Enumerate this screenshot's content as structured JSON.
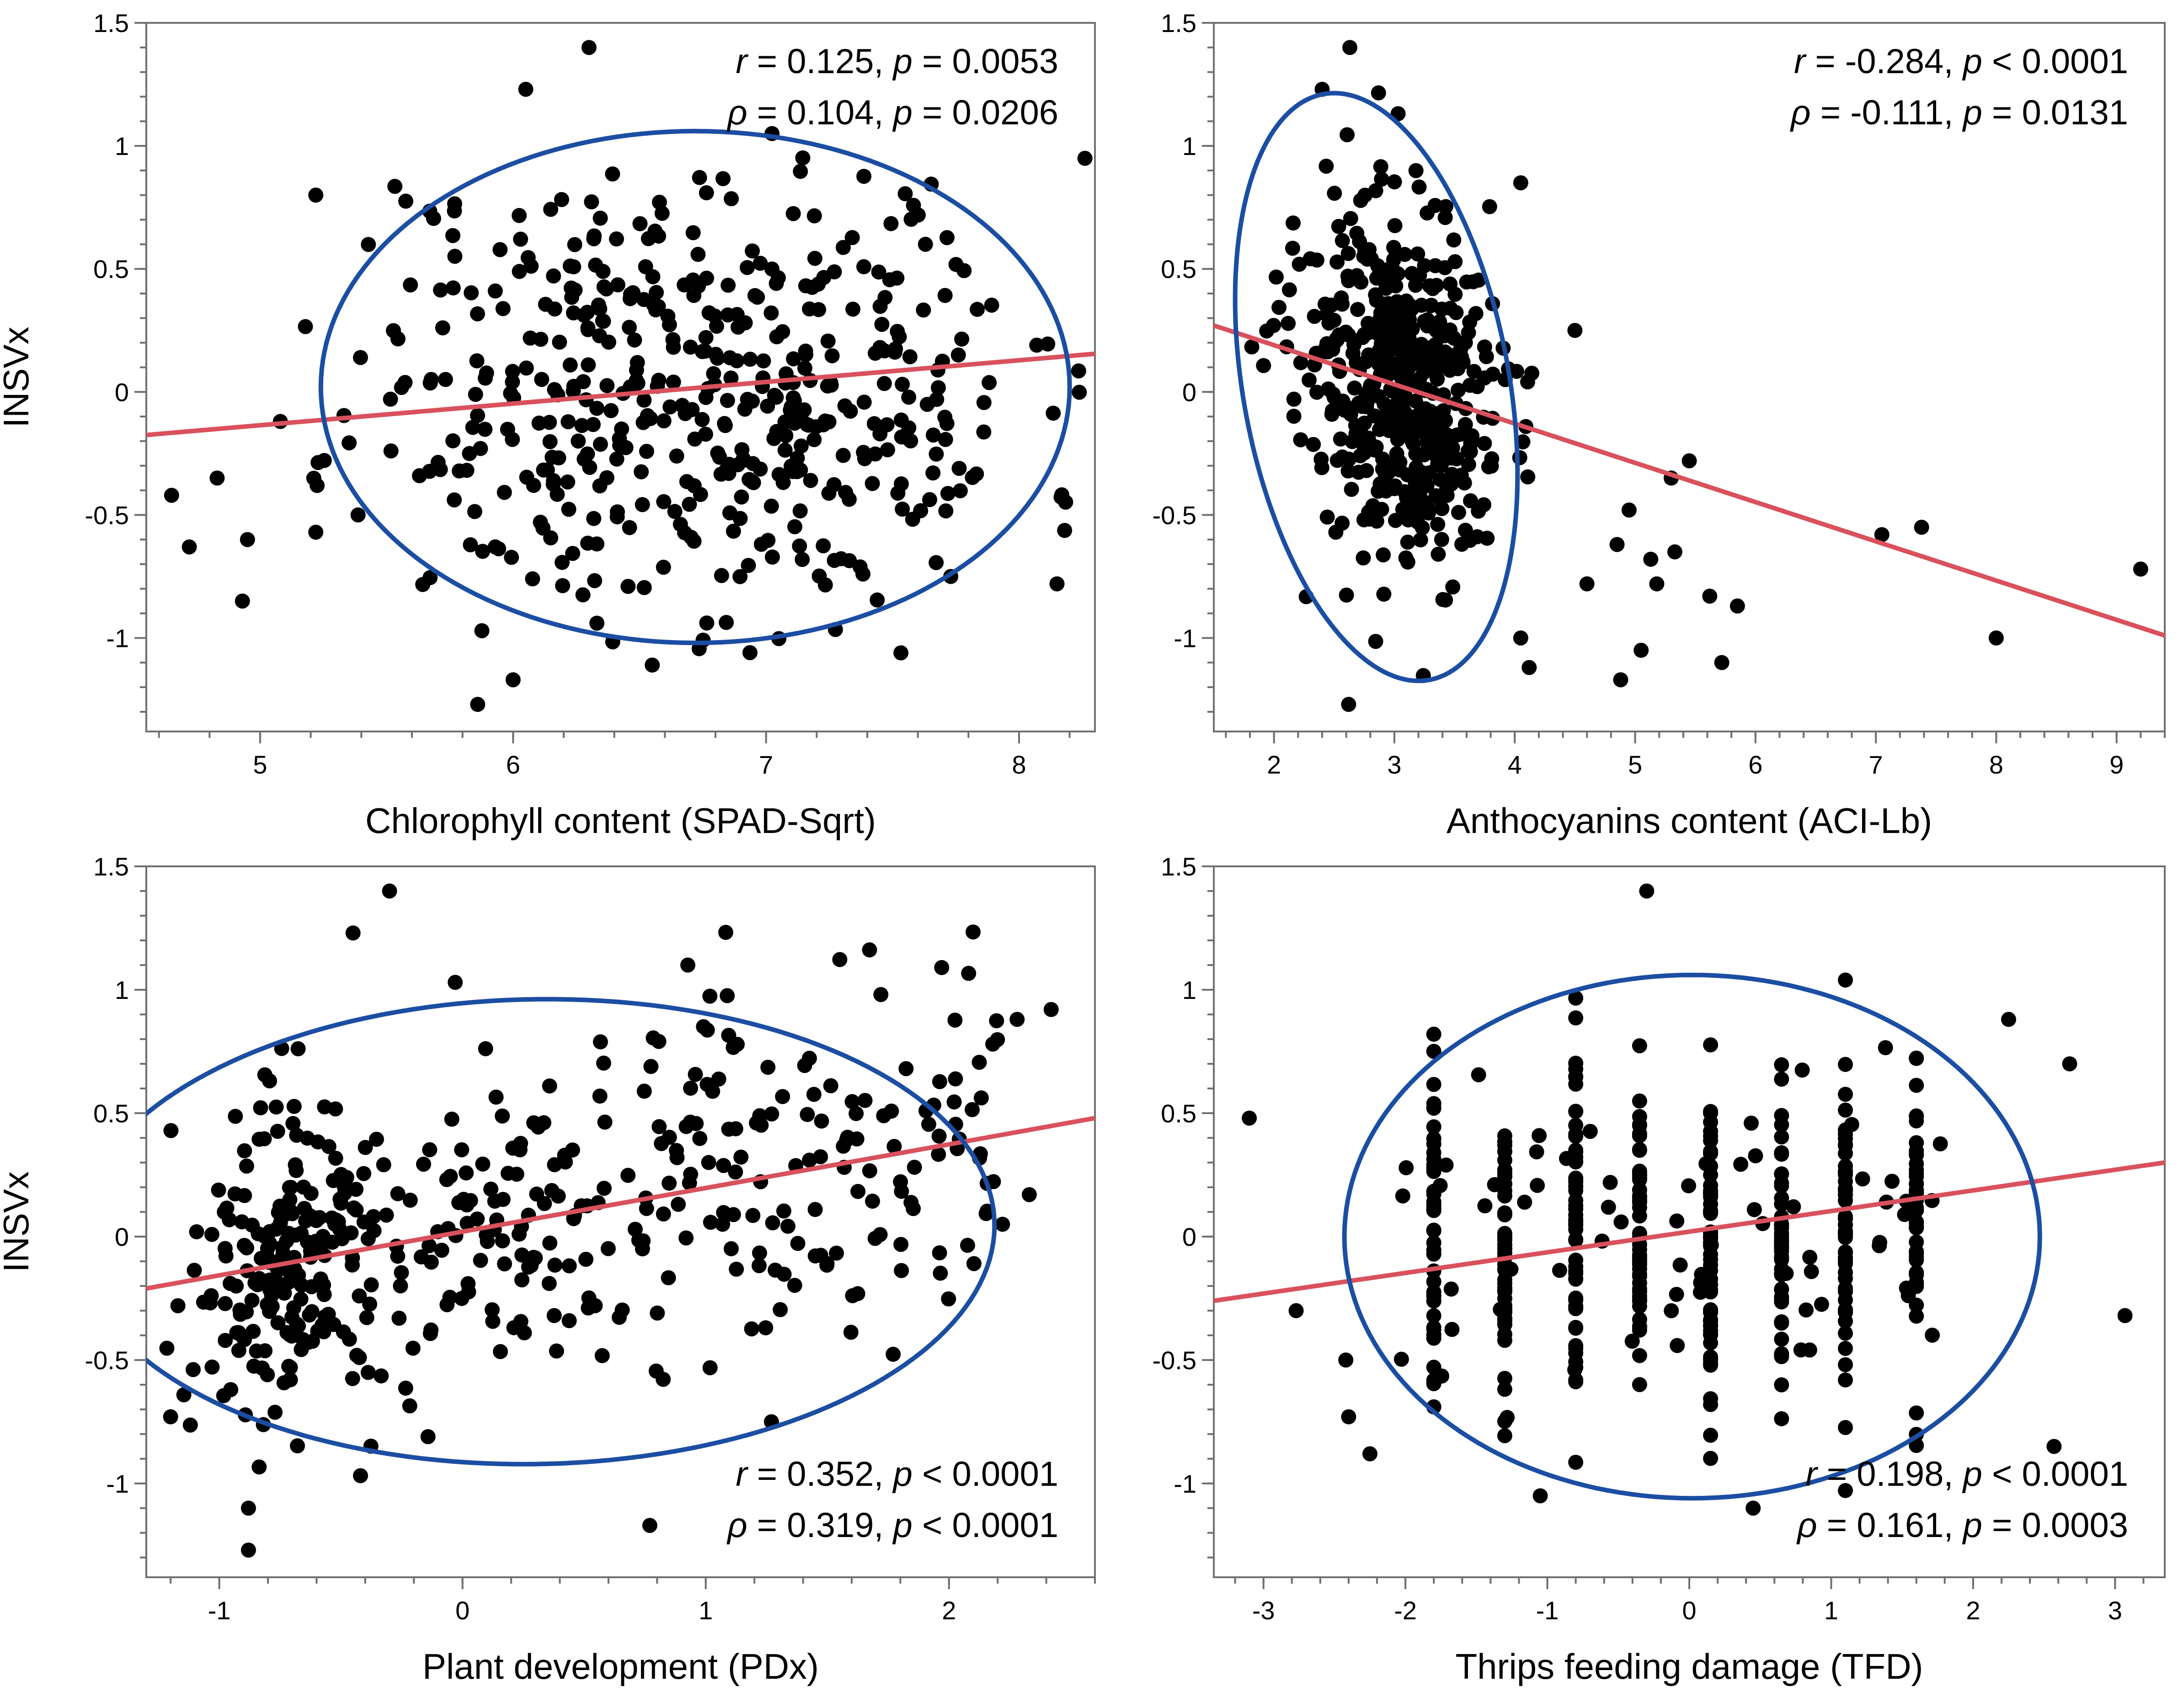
{
  "figure": {
    "colors": {
      "points": "#000000",
      "regression_line": "#d9515c",
      "density_ellipse": "#1b4ea3",
      "axes": "#6f6f6f"
    }
  },
  "chart_data": [
    {
      "type": "scatter",
      "title": "",
      "xlabel": "Chlorophyll content (SPAD-Sqrt)",
      "ylabel": "INSVx",
      "xlim": [
        4.55,
        8.3
      ],
      "ylim": [
        -1.38,
        1.5
      ],
      "xticks": [
        5,
        6,
        7,
        8
      ],
      "yticks": [
        -1,
        -0.5,
        0,
        0.5,
        1,
        1.5
      ],
      "stats": {
        "r_symbol": "r",
        "r_text": " = 0.125, ",
        "r_p_symbol": "p",
        "r_p_text": " = 0.0053",
        "rho_symbol": "ρ",
        "rho_text": " = 0.104, ",
        "rho_p_symbol": "p",
        "rho_p_text": " = 0.0206",
        "placement": "top-right"
      },
      "regression": {
        "x": [
          4.55,
          8.3
        ],
        "y": [
          -0.175,
          0.155
        ]
      },
      "ellipse": {
        "center": [
          6.72,
          0.02
        ],
        "radius": [
          1.48,
          1.04
        ],
        "rotation_deg": 0
      },
      "notable_points": [
        {
          "x": 6.3,
          "y": 1.4
        },
        {
          "x": 6.05,
          "y": 1.23
        },
        {
          "x": 4.65,
          "y": -0.42
        },
        {
          "x": 4.72,
          "y": -0.63
        },
        {
          "x": 4.83,
          "y": -0.35
        },
        {
          "x": 4.93,
          "y": -0.85
        },
        {
          "x": 4.95,
          "y": -0.6
        },
        {
          "x": 5.08,
          "y": -0.12
        },
        {
          "x": 5.22,
          "y": 0.8
        },
        {
          "x": 5.22,
          "y": -0.57
        },
        {
          "x": 5.86,
          "y": -1.27
        },
        {
          "x": 6.0,
          "y": -1.17
        },
        {
          "x": 6.55,
          "y": -1.11
        },
        {
          "x": 7.76,
          "y": 0.15
        },
        {
          "x": 8.07,
          "y": 0.19
        },
        {
          "x": 8.15,
          "y": -0.78
        },
        {
          "x": 7.73,
          "y": -0.75
        },
        {
          "x": 7.63,
          "y": 0.6
        }
      ],
      "n_points": 480,
      "seed": 11
    },
    {
      "type": "scatter",
      "title": "",
      "xlabel": "Anthocyanins content (ACI-Lb)",
      "ylabel": "",
      "xlim": [
        1.5,
        9.4
      ],
      "ylim": [
        -1.38,
        1.5
      ],
      "xticks": [
        2,
        3,
        4,
        5,
        6,
        7,
        8,
        9
      ],
      "yticks": [
        -1,
        -0.5,
        0,
        0.5,
        1,
        1.5
      ],
      "stats": {
        "r_symbol": "r",
        "r_text": " = -0.284, ",
        "r_p_symbol": "p",
        "r_p_text": " < 0.0001",
        "rho_symbol": "ρ",
        "rho_text": " = -0.111, ",
        "rho_p_symbol": "p",
        "rho_p_text": " = 0.0131",
        "placement": "top-right"
      },
      "regression": {
        "x": [
          1.5,
          9.4
        ],
        "y": [
          0.27,
          -0.99
        ]
      },
      "ellipse": {
        "center": [
          2.85,
          0.02
        ],
        "radius": [
          1.5,
          0.85
        ],
        "rotation_deg": -62
      },
      "notable_points": [
        {
          "x": 2.63,
          "y": 1.4
        },
        {
          "x": 2.4,
          "y": 1.23
        },
        {
          "x": 2.62,
          "y": -1.27
        },
        {
          "x": 9.2,
          "y": -0.72
        },
        {
          "x": 8.0,
          "y": -1.0
        },
        {
          "x": 7.05,
          "y": -0.58
        },
        {
          "x": 7.38,
          "y": -0.55
        },
        {
          "x": 5.45,
          "y": -0.28
        },
        {
          "x": 5.3,
          "y": -0.35
        },
        {
          "x": 5.62,
          "y": -0.83
        },
        {
          "x": 5.85,
          "y": -0.87
        },
        {
          "x": 5.72,
          "y": -1.1
        },
        {
          "x": 5.33,
          "y": -0.65
        },
        {
          "x": 5.13,
          "y": -0.68
        },
        {
          "x": 5.18,
          "y": -0.78
        },
        {
          "x": 5.05,
          "y": -1.05
        },
        {
          "x": 4.88,
          "y": -1.17
        },
        {
          "x": 4.12,
          "y": -1.12
        },
        {
          "x": 4.05,
          "y": -1.0
        },
        {
          "x": 4.85,
          "y": -0.62
        },
        {
          "x": 4.6,
          "y": -0.78
        },
        {
          "x": 4.95,
          "y": -0.48
        },
        {
          "x": 4.05,
          "y": 0.85
        },
        {
          "x": 4.5,
          "y": 0.25
        }
      ],
      "n_points": 480,
      "seed": 23
    },
    {
      "type": "scatter",
      "title": "",
      "xlabel": "Plant development (PDx)",
      "ylabel": "INSVx",
      "xlim": [
        -1.3,
        2.6
      ],
      "ylim": [
        -1.38,
        1.5
      ],
      "xticks": [
        -1,
        0,
        1,
        2
      ],
      "yticks": [
        -1,
        -0.5,
        0,
        0.5,
        1,
        1.5
      ],
      "stats": {
        "r_symbol": "r",
        "r_text": " = 0.352, ",
        "r_p_symbol": "p",
        "r_p_text": " < 0.0001",
        "rho_symbol": "ρ",
        "rho_text": " = 0.319, ",
        "rho_p_symbol": "p",
        "rho_p_text": " < 0.0001",
        "placement": "bottom-right"
      },
      "regression": {
        "x": [
          -1.3,
          2.6
        ],
        "y": [
          -0.21,
          0.48
        ]
      },
      "ellipse": {
        "center": [
          0.3,
          0.02
        ],
        "radius": [
          1.9,
          0.95
        ],
        "rotation_deg": -8
      },
      "notable_points": [
        {
          "x": -0.3,
          "y": 1.4
        },
        {
          "x": -0.45,
          "y": 1.23
        },
        {
          "x": -0.88,
          "y": -1.27
        },
        {
          "x": -0.88,
          "y": -1.1
        },
        {
          "x": 0.77,
          "y": -1.17
        },
        {
          "x": 2.42,
          "y": 0.92
        },
        {
          "x": 2.28,
          "y": 0.88
        },
        {
          "x": 1.97,
          "y": 1.09
        },
        {
          "x": 2.18,
          "y": 0.78
        },
        {
          "x": 2.33,
          "y": 0.17
        },
        {
          "x": 2.22,
          "y": 0.05
        },
        {
          "x": 1.27,
          "y": -0.75
        },
        {
          "x": -1.17,
          "y": -0.28
        },
        {
          "x": -1.2,
          "y": -0.73
        },
        {
          "x": -0.03,
          "y": 1.03
        }
      ],
      "n_points": 480,
      "seed": 37
    },
    {
      "type": "scatter",
      "title": "",
      "xlabel": "Thrips feeding damage (TFD)",
      "ylabel": "",
      "xlim": [
        -3.35,
        3.35
      ],
      "ylim": [
        -1.38,
        1.5
      ],
      "xticks": [
        -3,
        -2,
        -1,
        0,
        1,
        2,
        3
      ],
      "yticks": [
        -1,
        -0.5,
        0,
        0.5,
        1,
        1.5
      ],
      "stats": {
        "r_symbol": "r",
        "r_text": " = 0.198, ",
        "r_p_symbol": "p",
        "r_p_text": " < 0.0001",
        "rho_symbol": "ρ",
        "rho_text": " = 0.161, ",
        "rho_p_symbol": "p",
        "rho_p_text": " = 0.0003",
        "placement": "bottom-right"
      },
      "regression": {
        "x": [
          -3.35,
          3.35
        ],
        "y": [
          -0.26,
          0.3
        ]
      },
      "ellipse": {
        "center": [
          0.02,
          0.0
        ],
        "radius": [
          2.45,
          1.06
        ],
        "rotation_deg": 0
      },
      "notable_points": [
        {
          "x": -3.1,
          "y": 0.48
        },
        {
          "x": -2.77,
          "y": -0.3
        },
        {
          "x": -2.25,
          "y": -0.88
        },
        {
          "x": -2.4,
          "y": -0.73
        },
        {
          "x": -2.42,
          "y": -0.5
        },
        {
          "x": 3.07,
          "y": -0.32
        },
        {
          "x": 2.57,
          "y": -0.85
        },
        {
          "x": 2.68,
          "y": 0.7
        },
        {
          "x": 2.25,
          "y": 0.88
        },
        {
          "x": -0.3,
          "y": 1.4
        },
        {
          "x": 0.45,
          "y": -1.1
        },
        {
          "x": -1.05,
          "y": -1.05
        }
      ],
      "n_points": 480,
      "seed": 53
    }
  ]
}
